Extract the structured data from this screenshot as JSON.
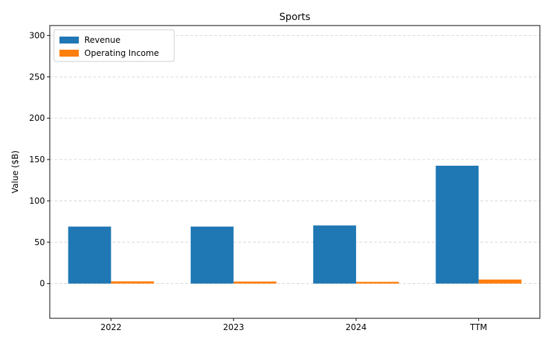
{
  "chart_data": {
    "type": "bar",
    "title": "Sports",
    "xlabel": "",
    "ylabel": "Value ($B)",
    "categories": [
      "2022",
      "2023",
      "2024",
      "TTM"
    ],
    "series": [
      {
        "name": "Revenue",
        "values": [
          68.9,
          68.9,
          70.3,
          142.5
        ],
        "color": "#1f77b4"
      },
      {
        "name": "Operating Income",
        "values": [
          2.7,
          2.5,
          2.1,
          4.9
        ],
        "color": "#ff7f0e"
      }
    ],
    "ylim": [
      -42,
      312
    ],
    "yticks": [
      0,
      50,
      100,
      150,
      200,
      250,
      300
    ],
    "grid": "y-dashed",
    "legend_position": "top-left"
  }
}
